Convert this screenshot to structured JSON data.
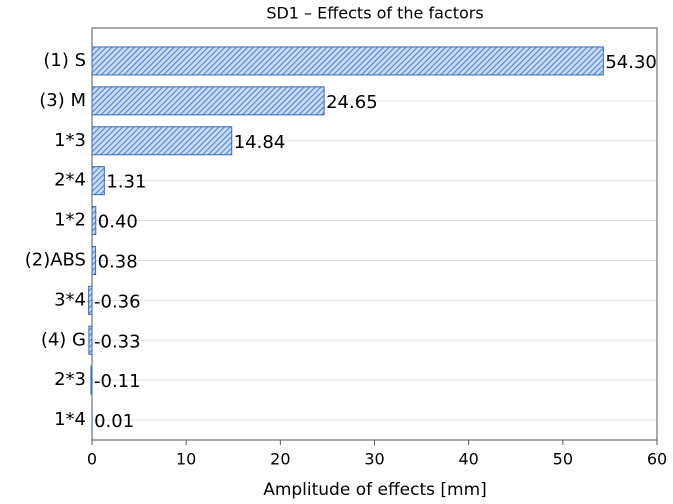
{
  "chart_data": {
    "type": "bar",
    "orientation": "horizontal",
    "title": "SD1 – Effects of the factors",
    "xlabel": "Amplitude of effects [mm]",
    "categories": [
      "(1) S",
      "(3) M",
      "1*3",
      "2*4",
      "1*2",
      "(2)ABS",
      "3*4",
      "(4) G",
      "2*3",
      "1*4"
    ],
    "values": [
      54.3,
      24.65,
      14.84,
      1.31,
      0.4,
      0.38,
      -0.36,
      -0.33,
      -0.11,
      0.01
    ],
    "value_labels": [
      "54.30",
      "24.65",
      "14.84",
      "1.31",
      "0.40",
      "0.38",
      "-0.36",
      "-0.33",
      "-0.11",
      "0.01"
    ],
    "color": "#4f86d9",
    "xlim": [
      0,
      60
    ],
    "xticks": [
      0,
      10,
      20,
      30,
      40,
      50,
      60
    ],
    "grid": true
  }
}
